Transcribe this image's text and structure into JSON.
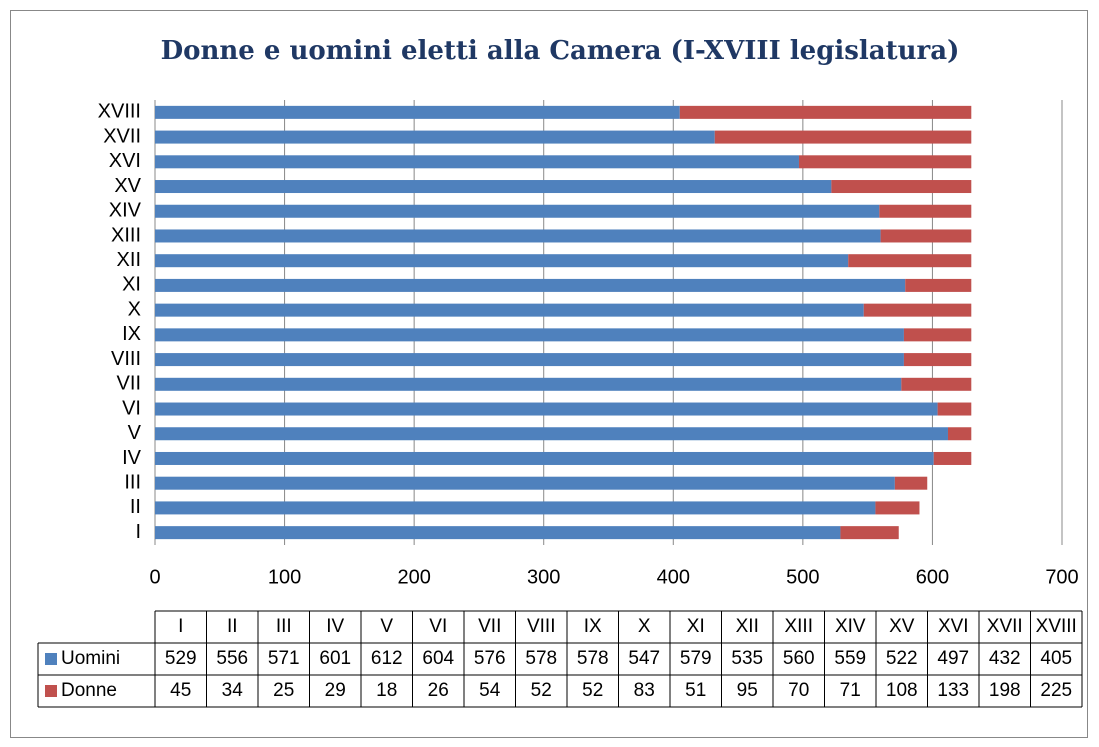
{
  "chart_data": {
    "type": "bar",
    "orientation": "horizontal",
    "stacked": true,
    "title": "Donne e uomini eletti alla Camera (I-XVIII legislatura)",
    "categories": [
      "I",
      "II",
      "III",
      "IV",
      "V",
      "VI",
      "VII",
      "VIII",
      "IX",
      "X",
      "XI",
      "XII",
      "XIII",
      "XIV",
      "XV",
      "XVI",
      "XVII",
      "XVIII"
    ],
    "series": [
      {
        "name": "Uomini",
        "color": "#4f81bd",
        "values": [
          529,
          556,
          571,
          601,
          612,
          604,
          576,
          578,
          578,
          547,
          579,
          535,
          560,
          559,
          522,
          497,
          432,
          405
        ]
      },
      {
        "name": "Donne",
        "color": "#c0504d",
        "values": [
          45,
          34,
          25,
          29,
          18,
          26,
          54,
          52,
          52,
          83,
          51,
          95,
          70,
          71,
          108,
          133,
          198,
          225
        ]
      }
    ],
    "xlim": [
      0,
      700
    ],
    "xticks": [
      0,
      100,
      200,
      300,
      400,
      500,
      600,
      700
    ],
    "grid": true,
    "data_table": true
  }
}
